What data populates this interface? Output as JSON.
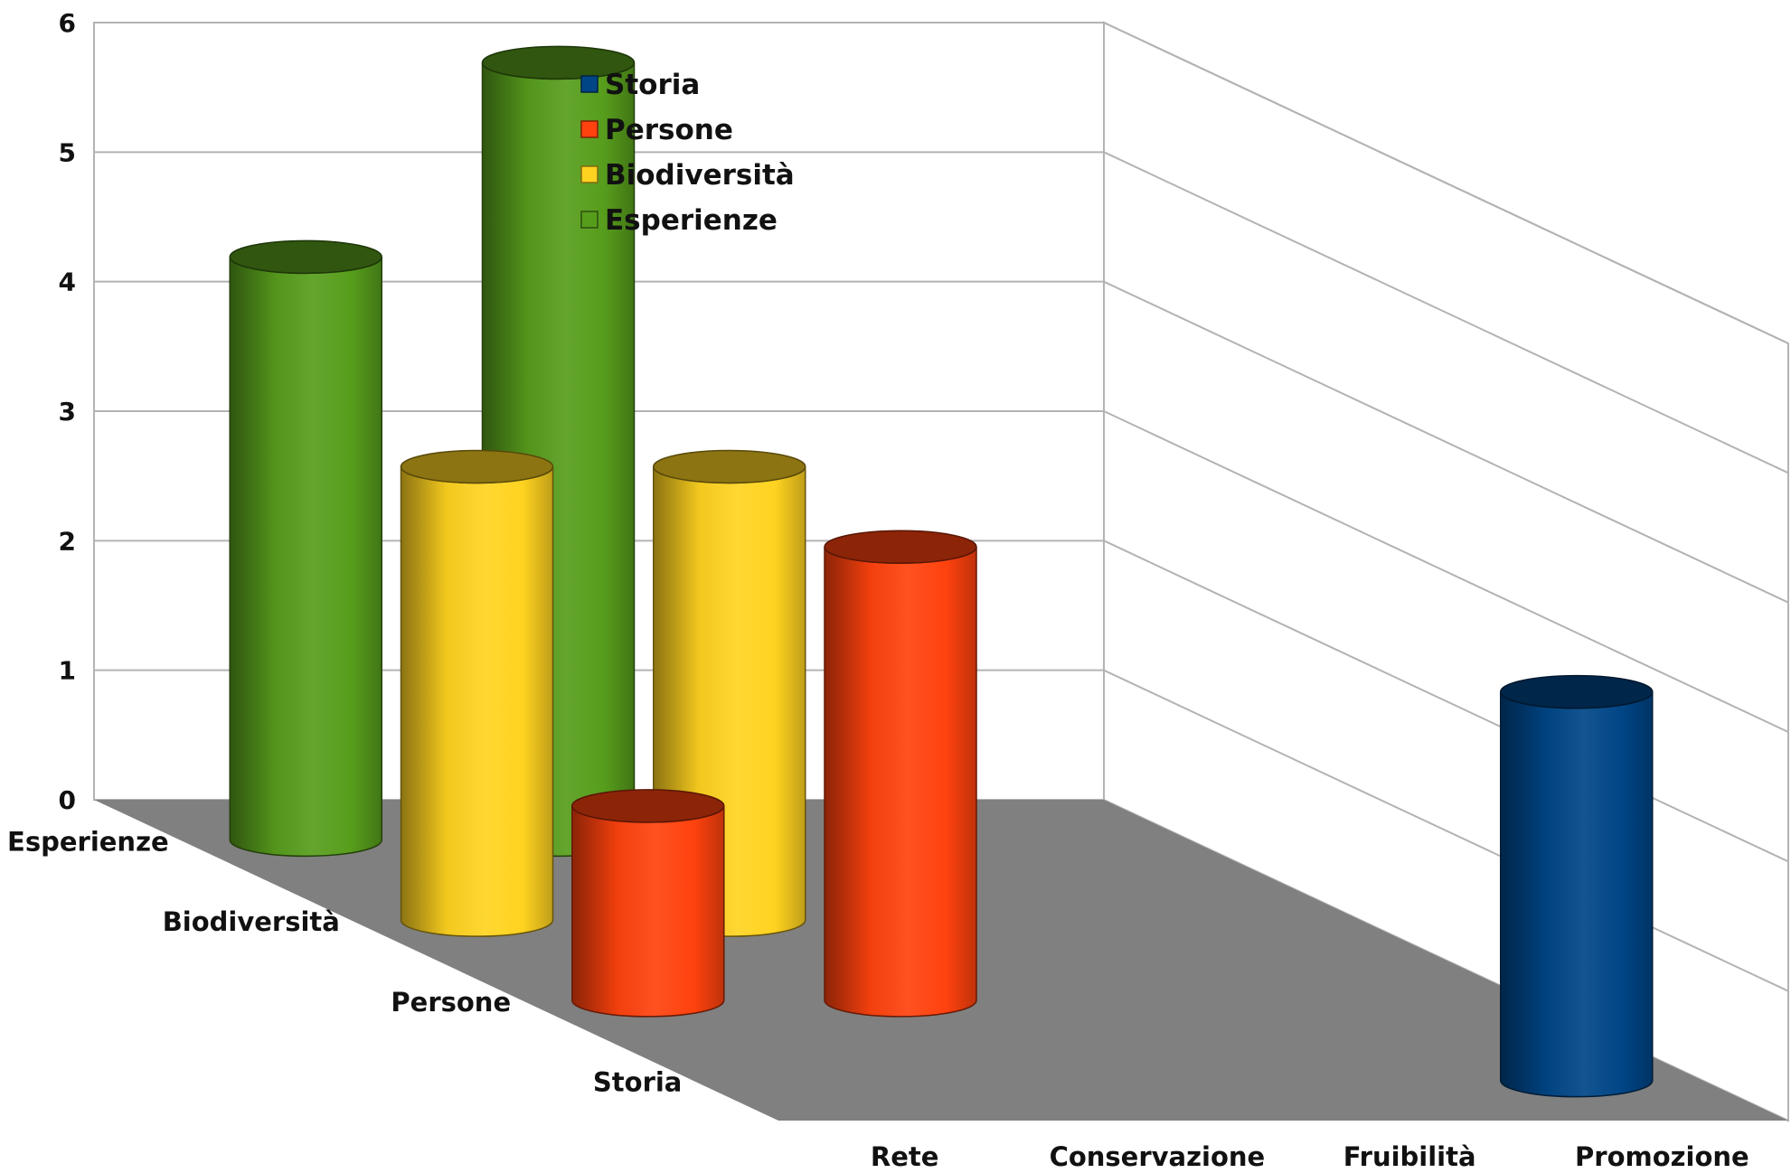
{
  "chart_data": {
    "type": "bar",
    "style": "3d-cylinder",
    "title": "",
    "xlabel": "",
    "ylabel": "",
    "ylim": [
      0,
      6
    ],
    "y_ticks": [
      "0",
      "1",
      "2",
      "3",
      "4",
      "5",
      "6"
    ],
    "grid": true,
    "legend_position": "top-center",
    "categories": [
      "Rete",
      "Conservazione",
      "Fruibilità",
      "Promozione"
    ],
    "series": [
      {
        "name": "Storia",
        "color": "#004586",
        "values": [
          0,
          0,
          0,
          3
        ]
      },
      {
        "name": "Persone",
        "color": "#ff420e",
        "values": [
          1.5,
          3.5,
          0,
          0
        ]
      },
      {
        "name": "Biodiversità",
        "color": "#ffd320",
        "values": [
          3.5,
          3.5,
          0,
          0
        ]
      },
      {
        "name": "Esperienze",
        "color": "#579d1c",
        "values": [
          4.5,
          6,
          0,
          0
        ]
      }
    ],
    "depth_axis_labels": [
      "Esperienze",
      "Biodiversità",
      "Persone",
      "Storia"
    ]
  }
}
